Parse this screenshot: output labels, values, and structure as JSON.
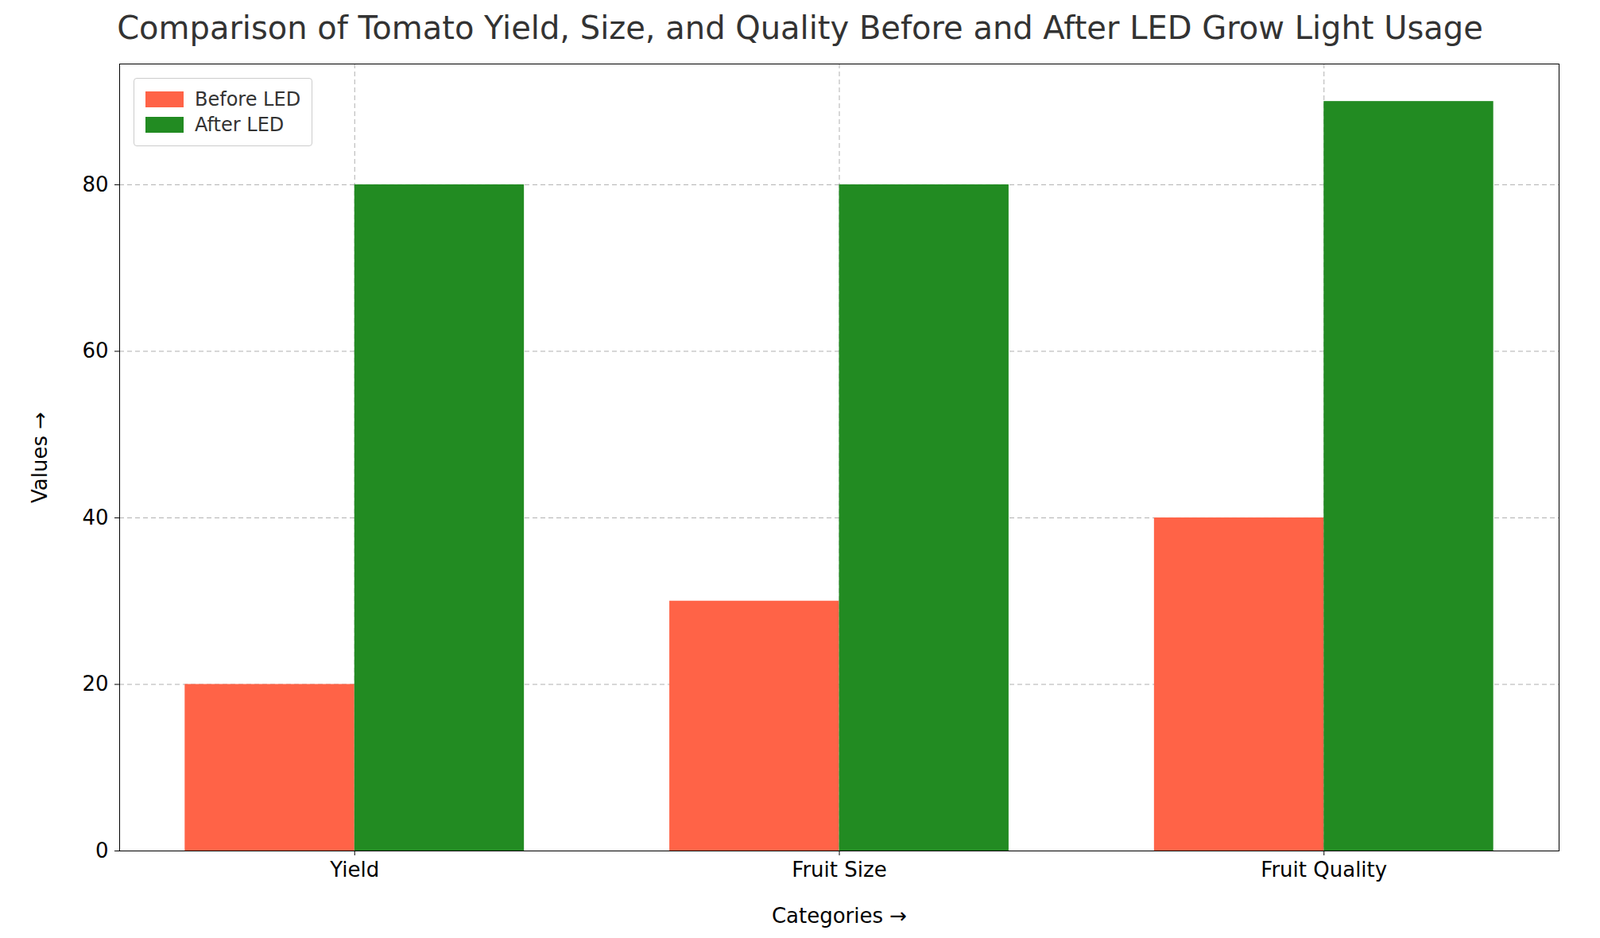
{
  "chart_data": {
    "type": "bar",
    "title": "Comparison of Tomato Yield, Size, and Quality Before and After LED Grow Light Usage",
    "x_label": "Categories",
    "y_label": "Values",
    "categories": [
      "Yield",
      "Fruit Size",
      "Fruit Quality"
    ],
    "series": [
      {
        "name": "Before LED",
        "color": "#ff6347",
        "values": [
          20,
          30,
          40
        ]
      },
      {
        "name": "After LED",
        "color": "#228b22",
        "values": [
          80,
          80,
          90
        ]
      }
    ],
    "ylim": [
      0,
      94.5
    ],
    "yticks": [
      0,
      20,
      40,
      60,
      80
    ],
    "grid": true,
    "legend": "upper left"
  }
}
